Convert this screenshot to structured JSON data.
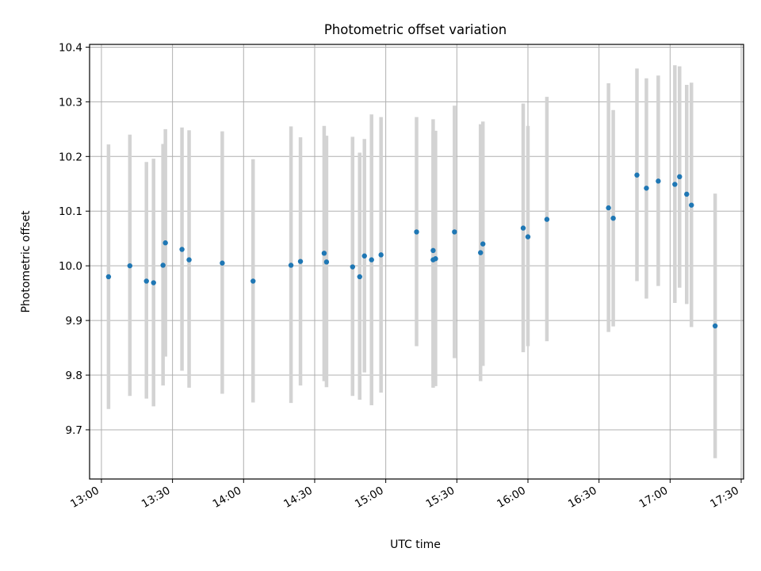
{
  "chart_data": {
    "type": "scatter",
    "title": "Photometric offset variation",
    "xlabel": "UTC time",
    "ylabel": "Photometric offset",
    "x_axis_type": "time",
    "x_date": "",
    "xlim": [
      "12:55",
      "17:31"
    ],
    "ylim": [
      9.61,
      10.405
    ],
    "grid": true,
    "x_tick_labels": [
      "13:00",
      "13:30",
      "14:00",
      "14:30",
      "15:00",
      "15:30",
      "16:00",
      "16:30",
      "17:00",
      "17:30"
    ],
    "y_tick_values": [
      9.7,
      9.8,
      9.9,
      10.0,
      10.1,
      10.2,
      10.3,
      10.4
    ],
    "y_tick_labels": [
      "9.7",
      "9.8",
      "9.9",
      "10.0",
      "10.1",
      "10.2",
      "10.3",
      "10.4"
    ],
    "colors": {
      "point": "#1f77b4",
      "errorbar": "#d3d3d3",
      "grid": "#b0b0b0"
    },
    "points": [
      {
        "x": "13:03",
        "y": 9.98,
        "low": 9.738,
        "high": 10.222
      },
      {
        "x": "13:12",
        "y": 10.0,
        "low": 9.762,
        "high": 10.24
      },
      {
        "x": "13:19",
        "y": 9.972,
        "low": 9.757,
        "high": 10.19
      },
      {
        "x": "13:22",
        "y": 9.969,
        "low": 9.743,
        "high": 10.196
      },
      {
        "x": "13:26",
        "y": 10.001,
        "low": 9.781,
        "high": 10.223
      },
      {
        "x": "13:27",
        "y": 10.042,
        "low": 9.834,
        "high": 10.25
      },
      {
        "x": "13:34",
        "y": 10.03,
        "low": 9.808,
        "high": 10.253
      },
      {
        "x": "13:37",
        "y": 10.011,
        "low": 9.777,
        "high": 10.248
      },
      {
        "x": "13:51",
        "y": 10.005,
        "low": 9.766,
        "high": 10.246
      },
      {
        "x": "14:04",
        "y": 9.972,
        "low": 9.75,
        "high": 10.195
      },
      {
        "x": "14:20",
        "y": 10.001,
        "low": 9.749,
        "high": 10.255
      },
      {
        "x": "14:24",
        "y": 10.008,
        "low": 9.781,
        "high": 10.235
      },
      {
        "x": "14:34",
        "y": 10.023,
        "low": 9.789,
        "high": 10.256
      },
      {
        "x": "14:35",
        "y": 10.007,
        "low": 9.778,
        "high": 10.238
      },
      {
        "x": "14:46",
        "y": 9.998,
        "low": 9.762,
        "high": 10.236
      },
      {
        "x": "14:49",
        "y": 9.98,
        "low": 9.755,
        "high": 10.207
      },
      {
        "x": "14:51",
        "y": 10.018,
        "low": 9.805,
        "high": 10.232
      },
      {
        "x": "14:54",
        "y": 10.011,
        "low": 9.745,
        "high": 10.277
      },
      {
        "x": "14:58",
        "y": 10.02,
        "low": 9.768,
        "high": 10.272
      },
      {
        "x": "15:13",
        "y": 10.062,
        "low": 9.853,
        "high": 10.272
      },
      {
        "x": "15:20",
        "y": 10.028,
        "low": 9.79,
        "high": 10.268
      },
      {
        "x": "15:20",
        "y": 10.011,
        "low": 9.777,
        "high": 10.246
      },
      {
        "x": "15:21",
        "y": 10.013,
        "low": 9.78,
        "high": 10.247
      },
      {
        "x": "15:29",
        "y": 10.062,
        "low": 9.831,
        "high": 10.293
      },
      {
        "x": "15:40",
        "y": 10.024,
        "low": 9.789,
        "high": 10.259
      },
      {
        "x": "15:41",
        "y": 10.04,
        "low": 9.817,
        "high": 10.264
      },
      {
        "x": "15:58",
        "y": 10.069,
        "low": 9.842,
        "high": 10.297
      },
      {
        "x": "16:00",
        "y": 10.053,
        "low": 9.853,
        "high": 10.256
      },
      {
        "x": "16:08",
        "y": 10.085,
        "low": 9.862,
        "high": 10.309
      },
      {
        "x": "16:34",
        "y": 10.106,
        "low": 9.879,
        "high": 10.334
      },
      {
        "x": "16:36",
        "y": 10.087,
        "low": 9.889,
        "high": 10.285
      },
      {
        "x": "16:46",
        "y": 10.166,
        "low": 9.972,
        "high": 10.361
      },
      {
        "x": "16:50",
        "y": 10.142,
        "low": 9.94,
        "high": 10.343
      },
      {
        "x": "16:55",
        "y": 10.155,
        "low": 9.963,
        "high": 10.348
      },
      {
        "x": "17:02",
        "y": 10.149,
        "low": 9.932,
        "high": 10.367
      },
      {
        "x": "17:04",
        "y": 10.163,
        "low": 9.96,
        "high": 10.365
      },
      {
        "x": "17:07",
        "y": 10.131,
        "low": 9.93,
        "high": 10.331
      },
      {
        "x": "17:09",
        "y": 10.111,
        "low": 9.888,
        "high": 10.335
      },
      {
        "x": "17:19",
        "y": 9.89,
        "low": 9.648,
        "high": 10.132
      }
    ]
  }
}
